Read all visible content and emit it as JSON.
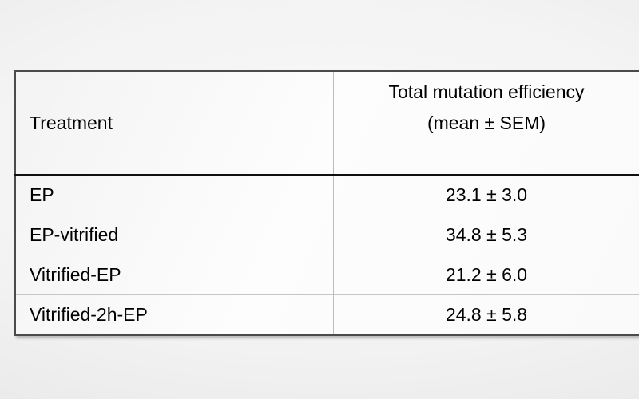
{
  "table": {
    "header": {
      "treatment": "Treatment",
      "efficiency_line1": "Total mutation efficiency",
      "efficiency_line2": "(mean ± SEM)"
    },
    "rows": [
      {
        "treatment": "EP",
        "value": "23.1 ± 3.0"
      },
      {
        "treatment": "EP-vitrified",
        "value": "34.8 ± 5.3"
      },
      {
        "treatment": "Vitrified-EP",
        "value": "21.2 ± 6.0"
      },
      {
        "treatment": "Vitrified-2h-EP",
        "value": "24.8 ± 5.8"
      }
    ]
  },
  "chart_data": {
    "type": "table",
    "columns": [
      "Treatment",
      "Total mutation efficiency (mean ± SEM)"
    ],
    "categories": [
      "EP",
      "EP-vitrified",
      "Vitrified-EP",
      "Vitrified-2h-EP"
    ],
    "series": [
      {
        "name": "Total mutation efficiency (mean)",
        "values": [
          23.1,
          34.8,
          21.2,
          24.8
        ]
      },
      {
        "name": "SEM",
        "values": [
          3.0,
          5.3,
          6.0,
          5.8
        ]
      }
    ]
  }
}
